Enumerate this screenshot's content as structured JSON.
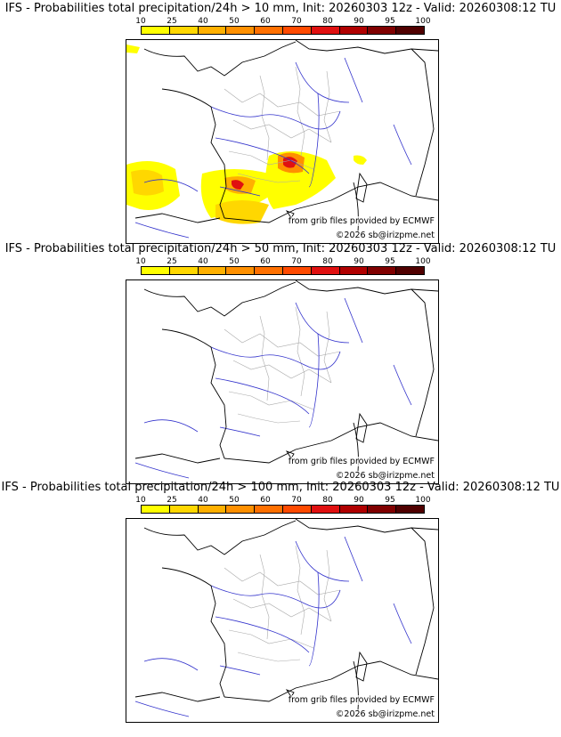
{
  "scale": {
    "labels": [
      "10",
      "25",
      "40",
      "50",
      "60",
      "70",
      "80",
      "90",
      "95",
      "100"
    ],
    "colors": [
      "#ffff00",
      "#ffd700",
      "#ffb000",
      "#ff9000",
      "#ff7000",
      "#ff4a00",
      "#e01010",
      "#b00000",
      "#800000",
      "#500000"
    ]
  },
  "credits": {
    "provider": "from grib files provided by ECMWF",
    "copyright": "©2026 sb@irizpme.net"
  },
  "colors": {
    "coastline": "#000000",
    "rivers": "#3333cc",
    "borders": "#aaaaaa"
  },
  "panels": [
    {
      "title": "IFS - Probabilities total precipitation/24h > 10 mm, Init: 20260303 12z - Valid: 20260308:12 TU",
      "threshold_mm": 10,
      "max_probability_pct": 80
    },
    {
      "title": "IFS - Probabilities total precipitation/24h > 50 mm, Init: 20260303 12z - Valid: 20260308:12 TU",
      "threshold_mm": 50,
      "max_probability_pct": 0
    },
    {
      "title": "IFS - Probabilities total precipitation/24h > 100 mm, Init: 20260303 12z - Valid: 20260308:12 TU",
      "threshold_mm": 100,
      "max_probability_pct": 0
    }
  ]
}
